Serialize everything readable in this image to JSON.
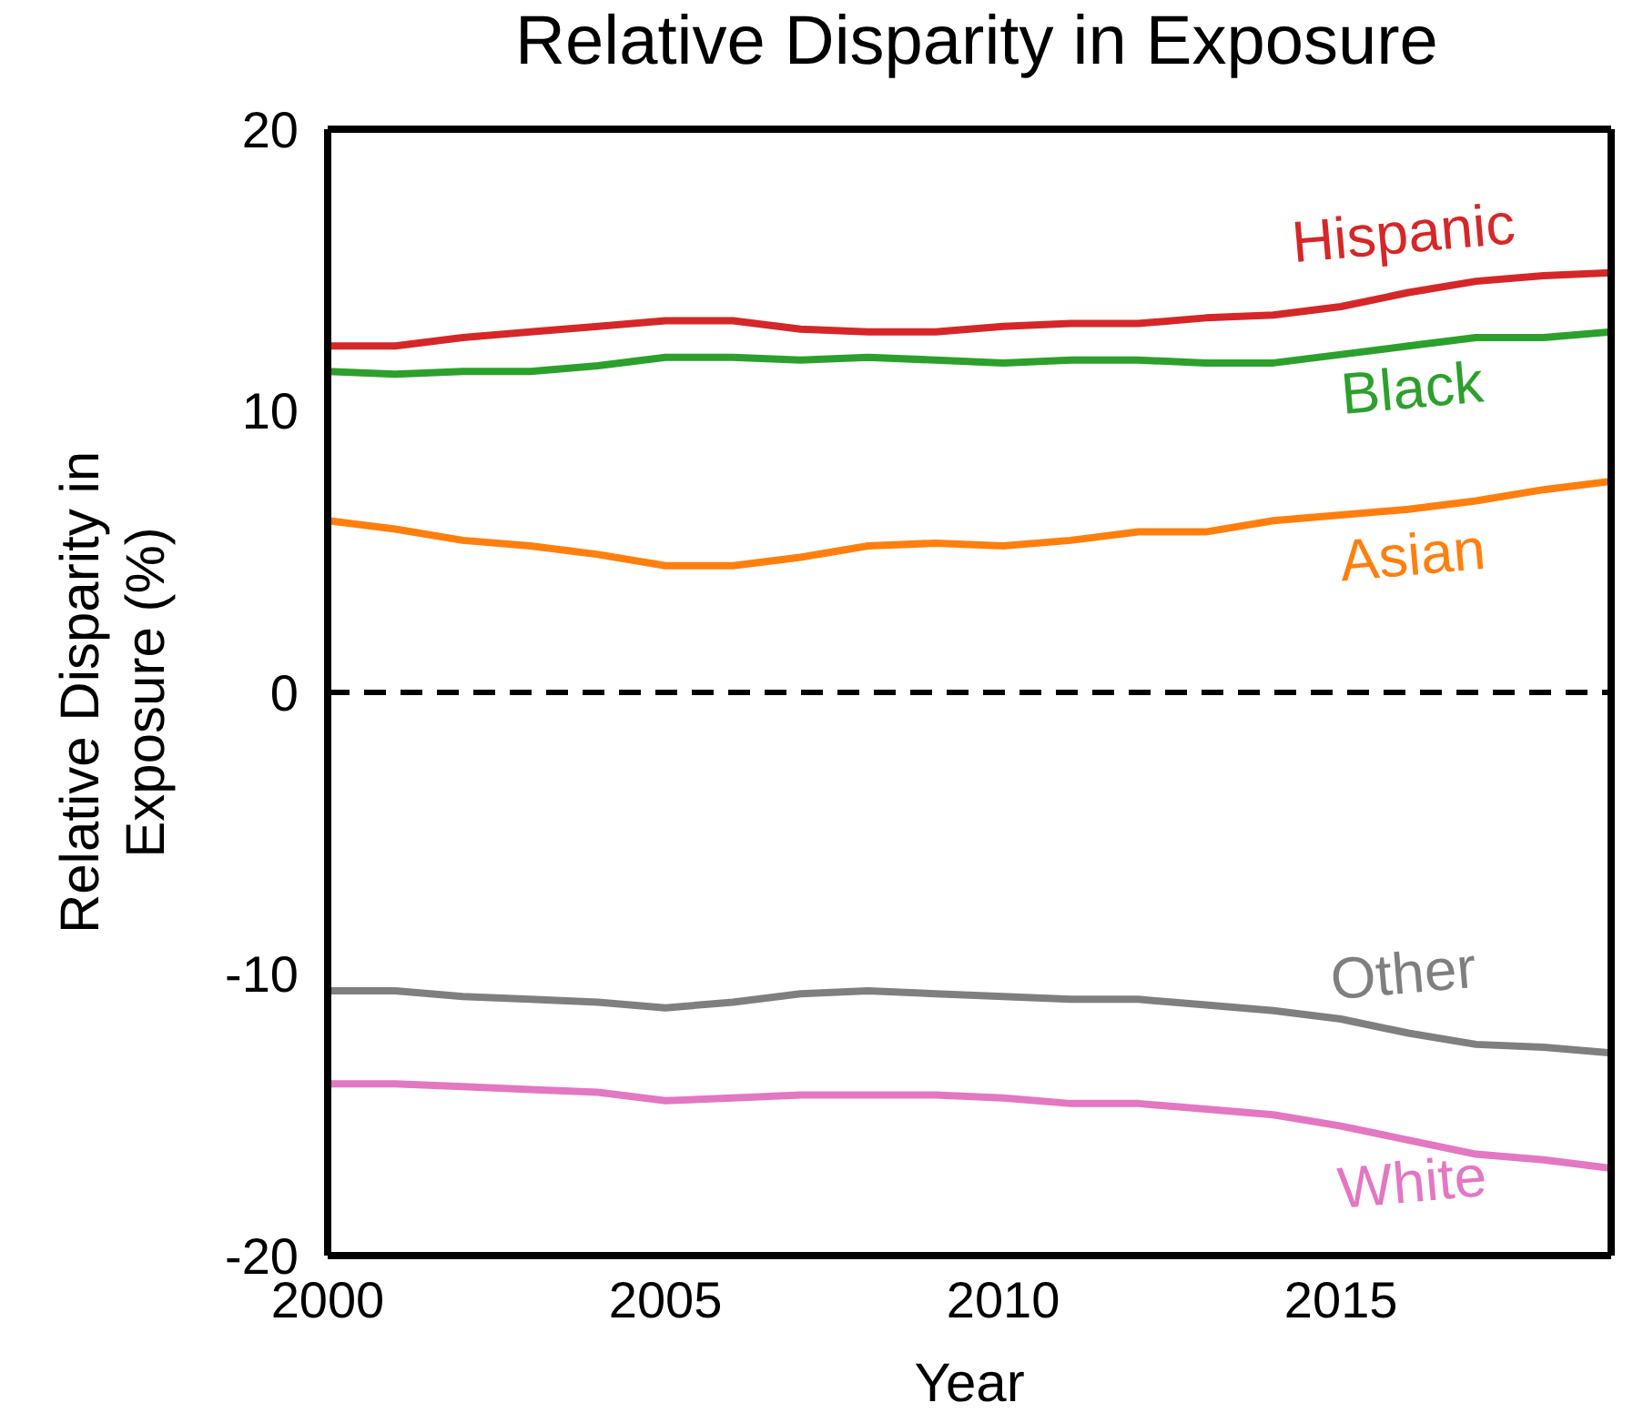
{
  "chart_data": {
    "type": "line",
    "title": "Relative Disparity in Exposure",
    "xlabel": "Year",
    "ylabel": "Relative Disparity in Exposure (%)",
    "x": [
      2000,
      2001,
      2002,
      2003,
      2004,
      2005,
      2006,
      2007,
      2008,
      2009,
      2010,
      2011,
      2012,
      2013,
      2014,
      2015,
      2016,
      2017,
      2018,
      2019
    ],
    "xlim": [
      2000,
      2019
    ],
    "xticks": [
      2000,
      2005,
      2010,
      2015
    ],
    "ylim": [
      -20,
      20
    ],
    "yticks": [
      -20,
      -10,
      0,
      10,
      20
    ],
    "marker": "none",
    "line_style": "solid",
    "ref_lines": [
      {
        "axis": "y",
        "value": 0,
        "color": "#000000",
        "line_style": "dashed"
      }
    ],
    "series": [
      {
        "name": "Hispanic",
        "color": "#d62728",
        "values": [
          12.3,
          12.3,
          12.6,
          12.8,
          13.0,
          13.2,
          13.2,
          12.9,
          12.8,
          12.8,
          13.0,
          13.1,
          13.1,
          13.3,
          13.4,
          13.7,
          14.2,
          14.6,
          14.8,
          14.9
        ]
      },
      {
        "name": "Black",
        "color": "#2ca02c",
        "values": [
          11.4,
          11.3,
          11.4,
          11.4,
          11.6,
          11.9,
          11.9,
          11.8,
          11.9,
          11.8,
          11.7,
          11.8,
          11.8,
          11.7,
          11.7,
          12.0,
          12.3,
          12.6,
          12.6,
          12.8
        ]
      },
      {
        "name": "Asian",
        "color": "#ff7f0e",
        "values": [
          6.1,
          5.8,
          5.4,
          5.2,
          4.9,
          4.5,
          4.5,
          4.8,
          5.2,
          5.3,
          5.2,
          5.4,
          5.7,
          5.7,
          6.1,
          6.3,
          6.5,
          6.8,
          7.2,
          7.5
        ]
      },
      {
        "name": "Other",
        "color": "#7f7f7f",
        "values": [
          -10.6,
          -10.6,
          -10.8,
          -10.9,
          -11.0,
          -11.2,
          -11.0,
          -10.7,
          -10.6,
          -10.7,
          -10.8,
          -10.9,
          -10.9,
          -11.1,
          -11.3,
          -11.6,
          -12.1,
          -12.5,
          -12.6,
          -12.8
        ]
      },
      {
        "name": "White",
        "color": "#e377c2",
        "values": [
          -13.9,
          -13.9,
          -14.0,
          -14.1,
          -14.2,
          -14.5,
          -14.4,
          -14.3,
          -14.3,
          -14.3,
          -14.4,
          -14.6,
          -14.6,
          -14.8,
          -15.0,
          -15.4,
          -15.9,
          -16.4,
          -16.6,
          -16.9
        ]
      }
    ]
  }
}
